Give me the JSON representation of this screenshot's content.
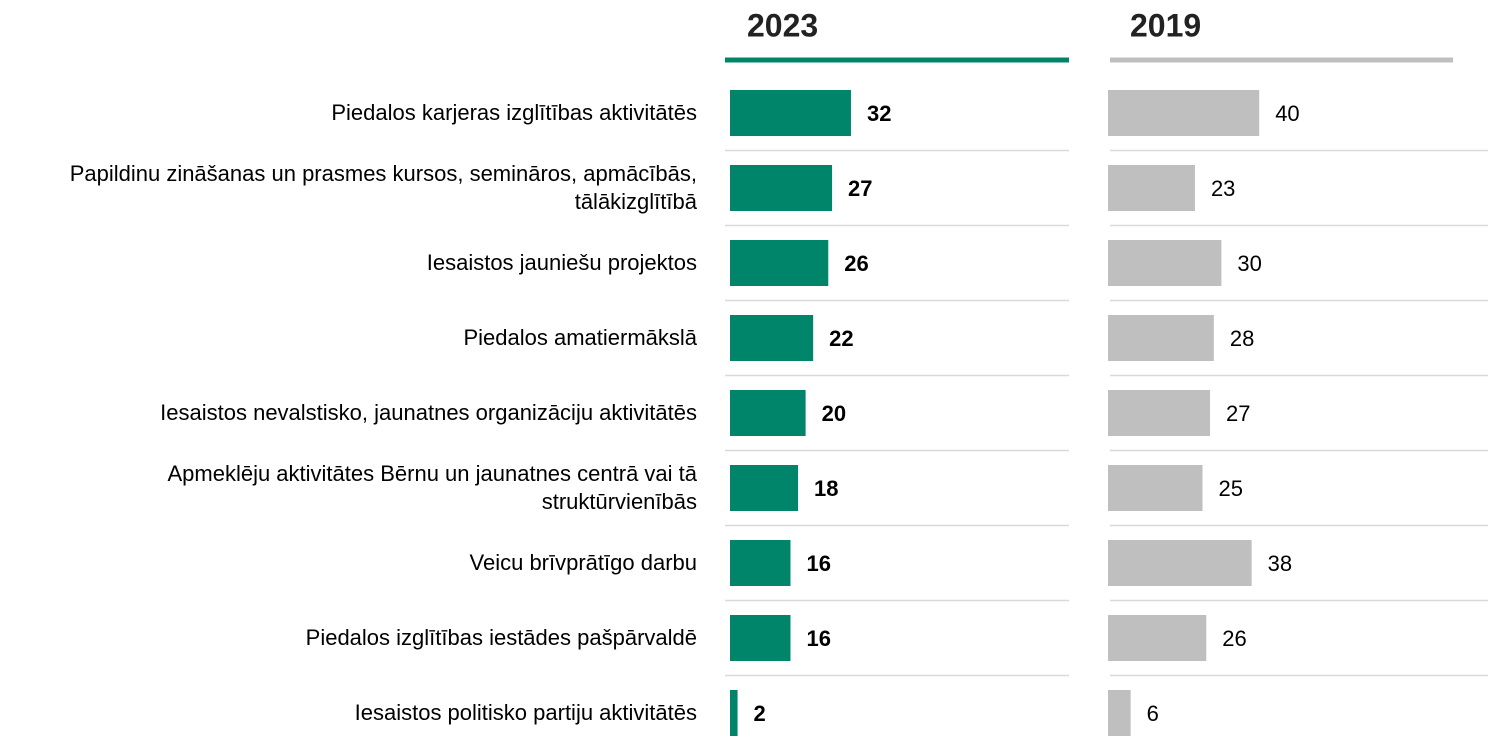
{
  "chart_data": {
    "type": "bar",
    "categories": [
      "Piedalos karjeras izglītības aktivitātēs",
      "Papildinu zināšanas un prasmes kursos, semināros, apmācībās, tālākizglītībā",
      "Iesaistos jauniešu projektos",
      "Piedalos amatiermākslā",
      "Iesaistos nevalstisko, jaunatnes organizāciju aktivitātēs",
      "Apmeklēju aktivitātes Bērnu un jaunatnes centrā vai tā struktūrvienībās",
      "Veicu brīvprātīgo darbu",
      "Piedalos izglītības iestādes pašpārvaldē",
      "Iesaistos politisko partiju aktivitātēs"
    ],
    "series": [
      {
        "name": "2023",
        "color": "#00856a",
        "values": [
          32,
          27,
          26,
          22,
          20,
          18,
          16,
          16,
          2
        ]
      },
      {
        "name": "2019",
        "color": "#bfbfbf",
        "values": [
          40,
          23,
          30,
          28,
          27,
          25,
          38,
          26,
          6
        ]
      }
    ]
  }
}
